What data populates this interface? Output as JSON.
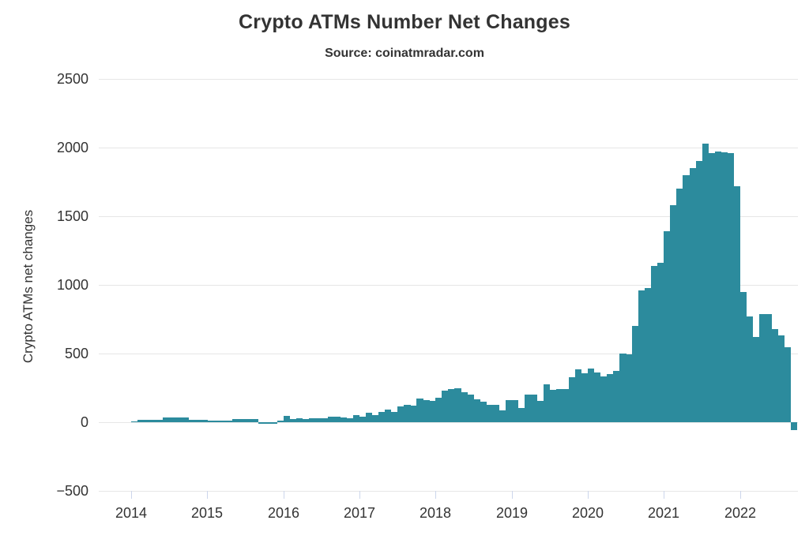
{
  "chart_data": {
    "type": "bar",
    "title": "Crypto ATMs Number Net Changes",
    "subtitle": "Source: coinatmradar.com",
    "ylabel": "Crypto ATMs net changes",
    "xlabel": "",
    "legend": "none",
    "grid": "horizontal",
    "ylim": [
      -500,
      2500
    ],
    "y_ticks": [
      2500,
      2000,
      1500,
      1000,
      500,
      0,
      -500
    ],
    "x_tick_labels": [
      "2014",
      "2015",
      "2016",
      "2017",
      "2018",
      "2019",
      "2020",
      "2021",
      "2022"
    ],
    "bar_color": "#2c8b9d",
    "grid_color": "#e6e6e6",
    "tick_color": "#ccd6eb",
    "text_color": "#333333",
    "months": [
      "2014-01",
      "2014-02",
      "2014-03",
      "2014-04",
      "2014-05",
      "2014-06",
      "2014-07",
      "2014-08",
      "2014-09",
      "2014-10",
      "2014-11",
      "2014-12",
      "2015-01",
      "2015-02",
      "2015-03",
      "2015-04",
      "2015-05",
      "2015-06",
      "2015-07",
      "2015-08",
      "2015-09",
      "2015-10",
      "2015-11",
      "2015-12",
      "2016-01",
      "2016-02",
      "2016-03",
      "2016-04",
      "2016-05",
      "2016-06",
      "2016-07",
      "2016-08",
      "2016-09",
      "2016-10",
      "2016-11",
      "2016-12",
      "2017-01",
      "2017-02",
      "2017-03",
      "2017-04",
      "2017-05",
      "2017-06",
      "2017-07",
      "2017-08",
      "2017-09",
      "2017-10",
      "2017-11",
      "2017-12",
      "2018-01",
      "2018-02",
      "2018-03",
      "2018-04",
      "2018-05",
      "2018-06",
      "2018-07",
      "2018-08",
      "2018-09",
      "2018-10",
      "2018-11",
      "2018-12",
      "2019-01",
      "2019-02",
      "2019-03",
      "2019-04",
      "2019-05",
      "2019-06",
      "2019-07",
      "2019-08",
      "2019-09",
      "2019-10",
      "2019-11",
      "2019-12",
      "2020-01",
      "2020-02",
      "2020-03",
      "2020-04",
      "2020-05",
      "2020-06",
      "2020-07",
      "2020-08",
      "2020-09",
      "2020-10",
      "2020-11",
      "2020-12",
      "2021-01",
      "2021-02",
      "2021-03",
      "2021-04",
      "2021-05",
      "2021-06",
      "2021-07",
      "2021-08",
      "2021-09",
      "2021-10",
      "2021-11",
      "2021-12",
      "2022-01",
      "2022-02",
      "2022-03",
      "2022-04",
      "2022-05",
      "2022-06",
      "2022-07",
      "2022-08",
      "2022-09"
    ],
    "values": [
      8,
      15,
      18,
      18,
      18,
      32,
      33,
      33,
      33,
      20,
      20,
      18,
      12,
      12,
      12,
      10,
      22,
      22,
      24,
      22,
      -10,
      -12,
      -10,
      10,
      45,
      25,
      27,
      25,
      28,
      30,
      28,
      40,
      42,
      35,
      29,
      52,
      42,
      67,
      53,
      76,
      90,
      76,
      115,
      125,
      120,
      172,
      160,
      153,
      178,
      230,
      240,
      245,
      220,
      200,
      167,
      148,
      125,
      128,
      86,
      163,
      163,
      105,
      200,
      200,
      153,
      275,
      235,
      240,
      243,
      326,
      387,
      354,
      391,
      362,
      333,
      351,
      374,
      500,
      497,
      701,
      958,
      975,
      1139,
      1160,
      1390,
      1580,
      1700,
      1800,
      1850,
      1900,
      2030,
      1960,
      1970,
      1965,
      1960,
      1720,
      950,
      770,
      620,
      785,
      785,
      680,
      630,
      545,
      -55
    ]
  }
}
